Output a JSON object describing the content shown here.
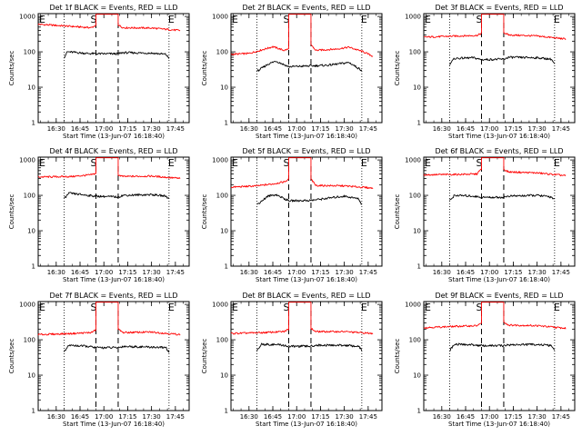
{
  "colors": {
    "events": "#000000",
    "lld": "#ff0000",
    "background": "#ffffff",
    "axes": "#000000"
  },
  "common": {
    "ylabel": "Counts/sec",
    "xlabel": "Start Time (13-Jun-07 16:18:40)",
    "xticks": [
      "16:30",
      "16:45",
      "17:00",
      "17:15",
      "17:30",
      "17:45"
    ],
    "yticks": [
      "1",
      "10",
      "100",
      "1000"
    ],
    "markers": {
      "start": "E",
      "middle": "S",
      "end": "E"
    }
  },
  "chart_data": [
    {
      "type": "line",
      "title": "Det 1f BLACK = Events, RED = LLD",
      "ylim": [
        1,
        1200
      ],
      "y_scale": "log",
      "dotted_lines": [
        "16:35",
        "17:41"
      ],
      "dashed_lines": [
        "16:55",
        "17:09"
      ],
      "series": [
        {
          "name": "LLD",
          "color": "#ff0000",
          "points": [
            [
              "16:18:40",
              600
            ],
            [
              "16:35",
              540
            ],
            [
              "16:52",
              480
            ],
            [
              "16:55",
              560
            ],
            [
              "16:55",
              1150
            ],
            [
              "17:09",
              1150
            ],
            [
              "17:09",
              580
            ],
            [
              "17:12",
              480
            ],
            [
              "17:30",
              470
            ],
            [
              "17:48",
              400
            ]
          ]
        },
        {
          "name": "Events",
          "color": "#000000",
          "points": [
            [
              "16:35",
              70
            ],
            [
              "16:37",
              100
            ],
            [
              "16:50",
              90
            ],
            [
              "16:55",
              88
            ],
            [
              "17:09",
              88
            ],
            [
              "17:12",
              95
            ],
            [
              "17:30",
              92
            ],
            [
              "17:39",
              85
            ],
            [
              "17:41",
              65
            ]
          ]
        }
      ]
    },
    {
      "type": "line",
      "title": "Det 2f BLACK = Events, RED = LLD",
      "ylim": [
        1,
        1200
      ],
      "y_scale": "log",
      "dotted_lines": [
        "16:35",
        "17:41"
      ],
      "dashed_lines": [
        "16:55",
        "17:09"
      ],
      "series": [
        {
          "name": "LLD",
          "color": "#ff0000",
          "points": [
            [
              "16:18:40",
              85
            ],
            [
              "16:30",
              90
            ],
            [
              "16:40",
              120
            ],
            [
              "16:45",
              140
            ],
            [
              "16:52",
              110
            ],
            [
              "16:55",
              120
            ],
            [
              "16:55",
              1150
            ],
            [
              "17:09",
              1150
            ],
            [
              "17:09",
              160
            ],
            [
              "17:12",
              110
            ],
            [
              "17:25",
              120
            ],
            [
              "17:33",
              135
            ],
            [
              "17:42",
              100
            ],
            [
              "17:48",
              75
            ]
          ]
        },
        {
          "name": "Events",
          "color": "#000000",
          "points": [
            [
              "16:35",
              28
            ],
            [
              "16:42",
              45
            ],
            [
              "16:47",
              55
            ],
            [
              "16:55",
              38
            ],
            [
              "17:09",
              40
            ],
            [
              "17:20",
              42
            ],
            [
              "17:33",
              50
            ],
            [
              "17:41",
              30
            ]
          ]
        }
      ]
    },
    {
      "type": "line",
      "title": "Det 3f BLACK = Events, RED = LLD",
      "ylim": [
        1,
        1200
      ],
      "y_scale": "log",
      "dotted_lines": [
        "16:35",
        "17:41"
      ],
      "dashed_lines": [
        "16:55",
        "17:09"
      ],
      "series": [
        {
          "name": "LLD",
          "color": "#ff0000",
          "points": [
            [
              "16:18:40",
              260
            ],
            [
              "16:40",
              280
            ],
            [
              "16:52",
              290
            ],
            [
              "16:55",
              330
            ],
            [
              "16:55",
              1150
            ],
            [
              "17:09",
              1150
            ],
            [
              "17:09",
              350
            ],
            [
              "17:12",
              300
            ],
            [
              "17:30",
              280
            ],
            [
              "17:48",
              230
            ]
          ]
        },
        {
          "name": "Events",
          "color": "#000000",
          "points": [
            [
              "16:35",
              45
            ],
            [
              "16:38",
              65
            ],
            [
              "16:50",
              68
            ],
            [
              "16:55",
              60
            ],
            [
              "17:09",
              62
            ],
            [
              "17:12",
              70
            ],
            [
              "17:30",
              68
            ],
            [
              "17:39",
              62
            ],
            [
              "17:41",
              45
            ]
          ]
        }
      ]
    },
    {
      "type": "line",
      "title": "Det 4f BLACK = Events, RED = LLD",
      "ylim": [
        1,
        1200
      ],
      "y_scale": "log",
      "dotted_lines": [
        "16:35",
        "17:41"
      ],
      "dashed_lines": [
        "16:55",
        "17:09"
      ],
      "series": [
        {
          "name": "LLD",
          "color": "#ff0000",
          "points": [
            [
              "16:18:40",
              330
            ],
            [
              "16:40",
              340
            ],
            [
              "16:52",
              380
            ],
            [
              "16:55",
              420
            ],
            [
              "16:55",
              1150
            ],
            [
              "17:09",
              1150
            ],
            [
              "17:09",
              380
            ],
            [
              "17:12",
              340
            ],
            [
              "17:30",
              350
            ],
            [
              "17:48",
              300
            ]
          ]
        },
        {
          "name": "Events",
          "color": "#000000",
          "points": [
            [
              "16:35",
              80
            ],
            [
              "16:38",
              115
            ],
            [
              "16:50",
              100
            ],
            [
              "16:55",
              95
            ],
            [
              "17:09",
              90
            ],
            [
              "17:12",
              100
            ],
            [
              "17:30",
              105
            ],
            [
              "17:39",
              95
            ],
            [
              "17:41",
              80
            ]
          ]
        }
      ]
    },
    {
      "type": "line",
      "title": "Det 5f BLACK = Events, RED = LLD",
      "ylim": [
        1,
        1200
      ],
      "y_scale": "log",
      "dotted_lines": [
        "16:35",
        "17:41"
      ],
      "dashed_lines": [
        "16:55",
        "17:09"
      ],
      "series": [
        {
          "name": "LLD",
          "color": "#ff0000",
          "points": [
            [
              "16:18:40",
              170
            ],
            [
              "16:35",
              185
            ],
            [
              "16:45",
              210
            ],
            [
              "16:52",
              240
            ],
            [
              "16:55",
              280
            ],
            [
              "16:55",
              1150
            ],
            [
              "17:09",
              1150
            ],
            [
              "17:09",
              290
            ],
            [
              "17:12",
              190
            ],
            [
              "17:30",
              185
            ],
            [
              "17:48",
              160
            ]
          ]
        },
        {
          "name": "Events",
          "color": "#000000",
          "points": [
            [
              "16:35",
              55
            ],
            [
              "16:42",
              95
            ],
            [
              "16:47",
              105
            ],
            [
              "16:55",
              70
            ],
            [
              "17:09",
              72
            ],
            [
              "17:12",
              75
            ],
            [
              "17:30",
              95
            ],
            [
              "17:39",
              80
            ],
            [
              "17:41",
              55
            ]
          ]
        }
      ]
    },
    {
      "type": "line",
      "title": "Det 6f BLACK = Events, RED = LLD",
      "ylim": [
        1,
        1200
      ],
      "y_scale": "log",
      "dotted_lines": [
        "16:35",
        "17:41"
      ],
      "dashed_lines": [
        "16:55",
        "17:09"
      ],
      "series": [
        {
          "name": "LLD",
          "color": "#ff0000",
          "points": [
            [
              "16:18:40",
              380
            ],
            [
              "16:40",
              390
            ],
            [
              "16:52",
              400
            ],
            [
              "16:55",
              560
            ],
            [
              "16:55",
              1150
            ],
            [
              "17:09",
              1150
            ],
            [
              "17:09",
              540
            ],
            [
              "17:12",
              460
            ],
            [
              "17:30",
              430
            ],
            [
              "17:48",
              360
            ]
          ]
        },
        {
          "name": "Events",
          "color": "#000000",
          "points": [
            [
              "16:35",
              70
            ],
            [
              "16:38",
              100
            ],
            [
              "16:50",
              95
            ],
            [
              "16:55",
              88
            ],
            [
              "17:09",
              88
            ],
            [
              "17:12",
              95
            ],
            [
              "17:30",
              100
            ],
            [
              "17:39",
              90
            ],
            [
              "17:41",
              75
            ]
          ]
        }
      ]
    },
    {
      "type": "line",
      "title": "Det 7f BLACK = Events, RED = LLD",
      "ylim": [
        1,
        1200
      ],
      "y_scale": "log",
      "dotted_lines": [
        "16:35",
        "17:41"
      ],
      "dashed_lines": [
        "16:55",
        "17:09"
      ],
      "series": [
        {
          "name": "LLD",
          "color": "#ff0000",
          "points": [
            [
              "16:18:40",
              140
            ],
            [
              "16:40",
              150
            ],
            [
              "16:52",
              160
            ],
            [
              "16:55",
              190
            ],
            [
              "16:55",
              1150
            ],
            [
              "17:09",
              1150
            ],
            [
              "17:09",
              200
            ],
            [
              "17:12",
              160
            ],
            [
              "17:30",
              165
            ],
            [
              "17:48",
              140
            ]
          ]
        },
        {
          "name": "Events",
          "color": "#000000",
          "points": [
            [
              "16:35",
              45
            ],
            [
              "16:38",
              70
            ],
            [
              "16:50",
              65
            ],
            [
              "16:55",
              60
            ],
            [
              "17:09",
              60
            ],
            [
              "17:12",
              65
            ],
            [
              "17:30",
              62
            ],
            [
              "17:39",
              60
            ],
            [
              "17:41",
              45
            ]
          ]
        }
      ]
    },
    {
      "type": "line",
      "title": "Det 8f BLACK = Events, RED = LLD",
      "ylim": [
        1,
        1200
      ],
      "y_scale": "log",
      "dotted_lines": [
        "16:35",
        "17:41"
      ],
      "dashed_lines": [
        "16:55",
        "17:09"
      ],
      "series": [
        {
          "name": "LLD",
          "color": "#ff0000",
          "points": [
            [
              "16:18:40",
              150
            ],
            [
              "16:40",
              160
            ],
            [
              "16:52",
              170
            ],
            [
              "16:55",
              200
            ],
            [
              "16:55",
              1150
            ],
            [
              "17:09",
              1150
            ],
            [
              "17:09",
              210
            ],
            [
              "17:12",
              170
            ],
            [
              "17:30",
              170
            ],
            [
              "17:48",
              150
            ]
          ]
        },
        {
          "name": "Events",
          "color": "#000000",
          "points": [
            [
              "16:35",
              50
            ],
            [
              "16:38",
              75
            ],
            [
              "16:50",
              72
            ],
            [
              "16:55",
              65
            ],
            [
              "17:09",
              66
            ],
            [
              "17:12",
              70
            ],
            [
              "17:30",
              70
            ],
            [
              "17:39",
              65
            ],
            [
              "17:41",
              50
            ]
          ]
        }
      ]
    },
    {
      "type": "line",
      "title": "Det 9f BLACK = Events, RED = LLD",
      "ylim": [
        1,
        1200
      ],
      "y_scale": "log",
      "dotted_lines": [
        "16:35",
        "17:41"
      ],
      "dashed_lines": [
        "16:55",
        "17:09"
      ],
      "series": [
        {
          "name": "LLD",
          "color": "#ff0000",
          "points": [
            [
              "16:18:40",
              220
            ],
            [
              "16:40",
              240
            ],
            [
              "16:52",
              250
            ],
            [
              "16:55",
              290
            ],
            [
              "16:55",
              1150
            ],
            [
              "17:09",
              1150
            ],
            [
              "17:09",
              320
            ],
            [
              "17:12",
              260
            ],
            [
              "17:30",
              250
            ],
            [
              "17:48",
              210
            ]
          ]
        },
        {
          "name": "Events",
          "color": "#000000",
          "points": [
            [
              "16:35",
              50
            ],
            [
              "16:38",
              75
            ],
            [
              "16:50",
              72
            ],
            [
              "16:55",
              68
            ],
            [
              "17:09",
              68
            ],
            [
              "17:12",
              72
            ],
            [
              "17:30",
              74
            ],
            [
              "17:39",
              68
            ],
            [
              "17:41",
              50
            ]
          ]
        }
      ]
    }
  ]
}
